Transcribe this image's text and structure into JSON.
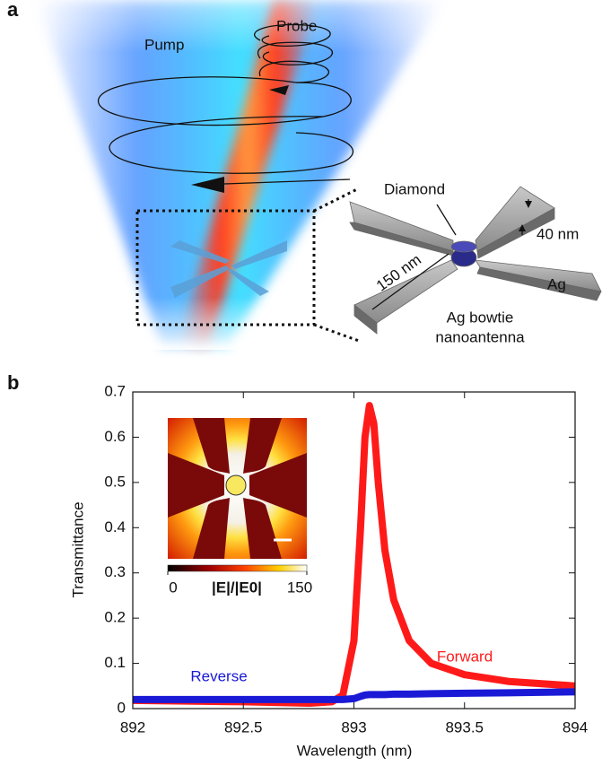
{
  "panel_labels": [
    "a",
    "b"
  ],
  "diagram": {
    "pump": "Pump",
    "probe": "Probe",
    "diamond": "Diamond",
    "thickness": "40 nm",
    "length": "150 nm",
    "metal": "Ag",
    "antenna": [
      "Ag bowtie",
      "nanoantenna"
    ]
  },
  "chart_data": {
    "type": "line",
    "x_label": "Wavelength (nm)",
    "y_label": "Transmittance",
    "x": [
      892,
      892.5,
      892.8,
      892.9,
      892.95,
      893.0,
      893.03,
      893.05,
      893.07,
      893.09,
      893.11,
      893.14,
      893.18,
      893.25,
      893.35,
      893.5,
      893.7,
      894
    ],
    "series": [
      {
        "name": "Forward",
        "color": "#ff1a1a",
        "values": [
          0.018,
          0.015,
          0.012,
          0.015,
          0.03,
          0.15,
          0.4,
          0.6,
          0.67,
          0.63,
          0.5,
          0.35,
          0.24,
          0.15,
          0.1,
          0.075,
          0.06,
          0.05
        ]
      },
      {
        "name": "Reverse",
        "color": "#1a1ad6",
        "values": [
          0.02,
          0.02,
          0.02,
          0.02,
          0.02,
          0.022,
          0.027,
          0.03,
          0.031,
          0.031,
          0.031,
          0.031,
          0.032,
          0.032,
          0.033,
          0.034,
          0.035,
          0.037
        ]
      }
    ],
    "xlim": [
      892,
      894
    ],
    "ylim": [
      0,
      0.7
    ],
    "xticks": [
      892,
      892.5,
      893,
      893.5,
      894
    ],
    "yticks": [
      0,
      0.1,
      0.2,
      0.3,
      0.4,
      0.5,
      0.6,
      0.7
    ],
    "inset_colorbar": {
      "label": "|E|/|E0|",
      "ticks": [
        0,
        150
      ]
    }
  }
}
